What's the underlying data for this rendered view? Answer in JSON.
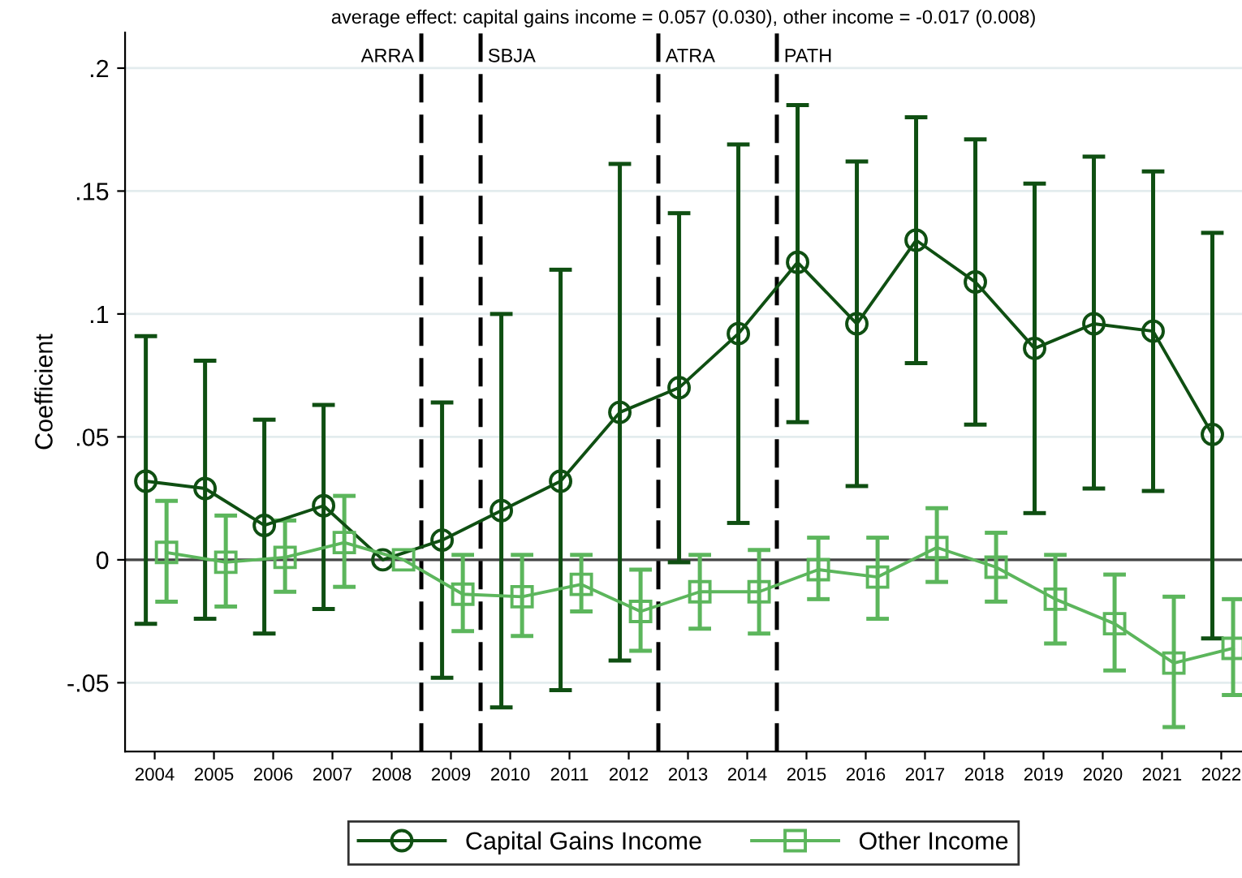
{
  "chart_data": {
    "type": "line",
    "title": "average effect: capital gains income = 0.057 (0.030), other income = -0.017 (0.008)",
    "ylabel": "Coefficient",
    "xlim": [
      2003.5,
      2022.35
    ],
    "xticks": [
      2004,
      2005,
      2006,
      2007,
      2008,
      2009,
      2010,
      2011,
      2012,
      2013,
      2014,
      2015,
      2016,
      2017,
      2018,
      2019,
      2020,
      2021,
      2022
    ],
    "ylim": [
      -0.078,
      0.2145
    ],
    "yticks": [
      {
        "value": -0.05,
        "label": "-.05"
      },
      0,
      {
        "value": 0.05,
        "label": ".05"
      },
      {
        "value": 0.1,
        "label": ".1"
      },
      {
        "value": 0.15,
        "label": ".15"
      },
      {
        "value": 0.2,
        "label": ".2"
      }
    ],
    "grid": "y",
    "legend": "bottom",
    "series": [
      {
        "name": "Capital Gains Income",
        "color": "#0f4f12",
        "marker": "circle",
        "x": [
          2003.85,
          2004.85,
          2005.85,
          2006.85,
          2007.85,
          2008.85,
          2009.85,
          2010.85,
          2011.85,
          2012.85,
          2013.85,
          2014.85,
          2015.85,
          2016.85,
          2017.85,
          2018.85,
          2019.85,
          2020.85,
          2021.85
        ],
        "values": [
          0.032,
          0.029,
          0.014,
          0.022,
          0,
          0.008,
          0.02,
          0.032,
          0.06,
          0.07,
          0.092,
          0.121,
          0.096,
          0.13,
          0.113,
          0.086,
          0.096,
          0.093,
          0.051
        ],
        "errors": [
          [
            -0.026,
            0.091
          ],
          [
            -0.024,
            0.081
          ],
          [
            -0.03,
            0.057
          ],
          [
            -0.02,
            0.063
          ],
          null,
          [
            -0.048,
            0.064
          ],
          [
            -0.06,
            0.1
          ],
          [
            -0.053,
            0.118
          ],
          [
            -0.041,
            0.161
          ],
          [
            -0.001,
            0.141
          ],
          [
            0.015,
            0.169
          ],
          [
            0.056,
            0.185
          ],
          [
            0.03,
            0.162
          ],
          [
            0.08,
            0.18
          ],
          [
            0.055,
            0.171
          ],
          [
            0.019,
            0.153
          ],
          [
            0.029,
            0.164
          ],
          [
            0.028,
            0.158
          ],
          [
            -0.032,
            0.133
          ]
        ]
      },
      {
        "name": "Other Income",
        "color": "#5cb65c",
        "marker": "square",
        "x": [
          2004.2,
          2005.2,
          2006.2,
          2007.2,
          2008.2,
          2009.2,
          2010.2,
          2011.2,
          2012.2,
          2013.2,
          2014.2,
          2015.2,
          2016.2,
          2017.2,
          2018.2,
          2019.2,
          2020.2,
          2021.2,
          2022.2
        ],
        "values": [
          0.003,
          -0.001,
          0.001,
          0.007,
          0,
          -0.014,
          -0.015,
          -0.01,
          -0.021,
          -0.013,
          -0.013,
          -0.004,
          -0.007,
          0.005,
          -0.003,
          -0.016,
          -0.026,
          -0.042,
          -0.036
        ],
        "errors": [
          [
            -0.017,
            0.024
          ],
          [
            -0.019,
            0.018
          ],
          [
            -0.013,
            0.016
          ],
          [
            -0.011,
            0.026
          ],
          null,
          [
            -0.029,
            0.002
          ],
          [
            -0.031,
            0.002
          ],
          [
            -0.021,
            0.002
          ],
          [
            -0.037,
            -0.004
          ],
          [
            -0.028,
            0.002
          ],
          [
            -0.03,
            0.004
          ],
          [
            -0.016,
            0.009
          ],
          [
            -0.024,
            0.009
          ],
          [
            -0.009,
            0.021
          ],
          [
            -0.017,
            0.011
          ],
          [
            -0.034,
            0.002
          ],
          [
            -0.045,
            -0.006
          ],
          [
            -0.068,
            -0.015
          ],
          [
            -0.055,
            -0.016
          ]
        ]
      }
    ],
    "ref_lines": [
      {
        "axis": "y",
        "value": 0,
        "color": "#444444",
        "line_style": "solid"
      },
      {
        "axis": "x",
        "value": 2008.5,
        "label": "ARRA",
        "color": "#000000",
        "line_style": "dashed"
      },
      {
        "axis": "x",
        "value": 2009.5,
        "label": "SBJA",
        "color": "#000000",
        "line_style": "dashed"
      },
      {
        "axis": "x",
        "value": 2012.5,
        "label": "ATRA",
        "color": "#000000",
        "line_style": "dashed"
      },
      {
        "axis": "x",
        "value": 2014.5,
        "label": "PATH",
        "color": "#000000",
        "line_style": "dashed"
      }
    ]
  }
}
